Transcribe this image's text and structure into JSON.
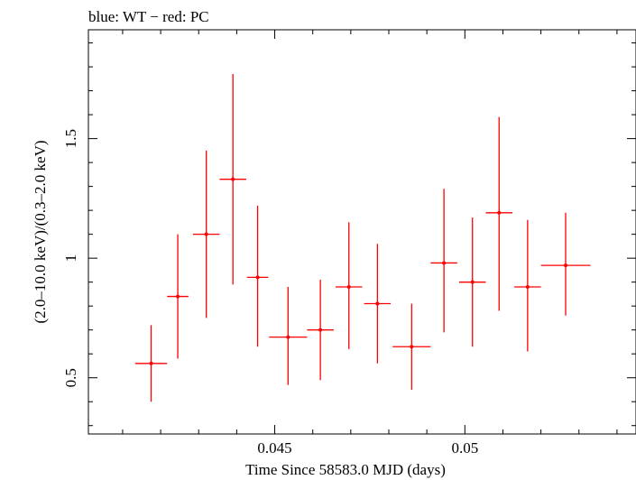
{
  "chart_data": {
    "type": "scatter",
    "title": "blue: WT − red: PC",
    "xlabel": "Time Since 58583.0 MJD (days)",
    "ylabel": "(2.0–10.0 keV)/(0.3–2.0 keV)",
    "xlim": [
      0.0401,
      0.0545
    ],
    "ylim": [
      0.265,
      1.955
    ],
    "xticks": [
      0.045,
      0.05
    ],
    "xtick_labels": [
      "0.045",
      "0.05"
    ],
    "yticks": [
      0.5,
      1.0,
      1.5
    ],
    "ytick_labels": [
      "0.5",
      "1",
      "1.5"
    ],
    "series": [
      {
        "color": "#ff0000",
        "points": [
          {
            "x": 0.04175,
            "xerr": 0.00042,
            "y": 0.56,
            "ylo": 0.4,
            "yhi": 0.72
          },
          {
            "x": 0.04245,
            "xerr": 0.00028,
            "y": 0.84,
            "ylo": 0.58,
            "yhi": 1.1
          },
          {
            "x": 0.0432,
            "xerr": 0.00035,
            "y": 1.1,
            "ylo": 0.75,
            "yhi": 1.45
          },
          {
            "x": 0.0439,
            "xerr": 0.00035,
            "y": 1.33,
            "ylo": 0.89,
            "yhi": 1.77
          },
          {
            "x": 0.04455,
            "xerr": 0.00028,
            "y": 0.92,
            "ylo": 0.63,
            "yhi": 1.22
          },
          {
            "x": 0.04535,
            "xerr": 0.0005,
            "y": 0.67,
            "ylo": 0.47,
            "yhi": 0.88
          },
          {
            "x": 0.0462,
            "xerr": 0.00035,
            "y": 0.7,
            "ylo": 0.49,
            "yhi": 0.91
          },
          {
            "x": 0.04695,
            "xerr": 0.00035,
            "y": 0.88,
            "ylo": 0.62,
            "yhi": 1.15
          },
          {
            "x": 0.0477,
            "xerr": 0.00035,
            "y": 0.81,
            "ylo": 0.56,
            "yhi": 1.06
          },
          {
            "x": 0.0486,
            "xerr": 0.0005,
            "y": 0.63,
            "ylo": 0.45,
            "yhi": 0.81
          },
          {
            "x": 0.04945,
            "xerr": 0.00035,
            "y": 0.98,
            "ylo": 0.69,
            "yhi": 1.29
          },
          {
            "x": 0.0502,
            "xerr": 0.00035,
            "y": 0.9,
            "ylo": 0.63,
            "yhi": 1.17
          },
          {
            "x": 0.0509,
            "xerr": 0.00035,
            "y": 1.19,
            "ylo": 0.78,
            "yhi": 1.59
          },
          {
            "x": 0.05165,
            "xerr": 0.00035,
            "y": 0.88,
            "ylo": 0.61,
            "yhi": 1.16
          },
          {
            "x": 0.05265,
            "xerr": 0.00065,
            "y": 0.97,
            "ylo": 0.76,
            "yhi": 1.19
          }
        ]
      }
    ]
  }
}
